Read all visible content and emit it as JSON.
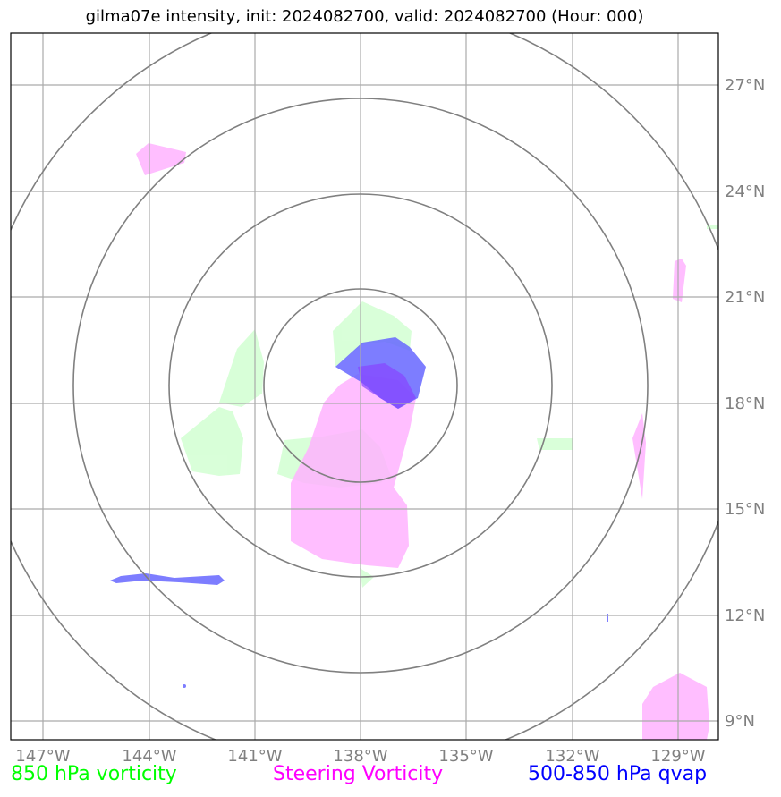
{
  "title": "gilma07e intensity, init: 2024082700, valid: 2024082700 (Hour: 000)",
  "map": {
    "lon_labels": [
      "147°W",
      "144°W",
      "141°W",
      "138°W",
      "135°W",
      "132°W",
      "129°W"
    ],
    "lat_labels": [
      "27°N",
      "24°N",
      "21°N",
      "18°N",
      "15°N",
      "12°N",
      "9°N"
    ],
    "grid_color": "#aaaaaa",
    "ring_color": "#808080"
  },
  "legend": {
    "vorticity_850": {
      "label": "850 hPa vorticity",
      "color": "#00ff00"
    },
    "steering": {
      "label": "Steering Vorticity",
      "color": "#ff00ff"
    },
    "qvap": {
      "label": "500-850 hPa qvap",
      "color": "#0000ff"
    }
  },
  "fields": {
    "vorticity_850_fill": "#ccffcc",
    "steering_fill": "#ffb3ff",
    "qvap_fill": "#6666ff"
  }
}
